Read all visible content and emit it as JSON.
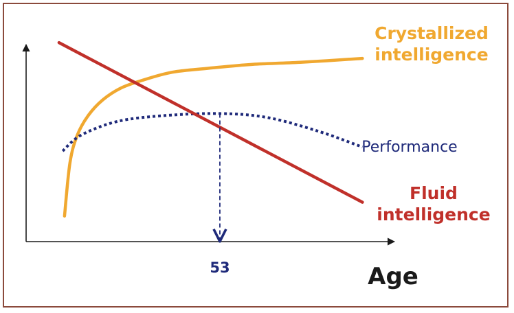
{
  "chart_data": {
    "type": "line",
    "title": "",
    "xlabel": "Age",
    "ylabel": "",
    "xlim": [
      0,
      100
    ],
    "ylim": [
      0,
      100
    ],
    "grid": false,
    "colors": {
      "crystallized": "#f0a830",
      "fluid": "#c0302a",
      "performance": "#1f2a7a",
      "axis": "#1a1a1a",
      "peak_marker": "#1f2a7a",
      "frame": "#8b4a3c"
    },
    "series": [
      {
        "name": "Crystallized intelligence",
        "label_lines": [
          "Crystallized",
          "intelligence"
        ],
        "style": "solid",
        "x": [
          10.5,
          12,
          14,
          17,
          21,
          26,
          32,
          40,
          50,
          62,
          75,
          92
        ],
        "y": [
          13,
          40,
          54,
          64,
          72,
          78,
          82,
          86,
          88,
          90,
          91,
          93
        ]
      },
      {
        "name": "Fluid intelligence",
        "label_lines": [
          "Fluid",
          "intelligence"
        ],
        "style": "solid",
        "x": [
          9,
          92
        ],
        "y": [
          101,
          20
        ]
      },
      {
        "name": "Performance",
        "label_lines": [
          "Performance"
        ],
        "style": "dotted",
        "x": [
          10,
          15,
          25,
          38,
          53,
          66,
          80,
          92
        ],
        "y": [
          46,
          54,
          61,
          64,
          65,
          63,
          56,
          48
        ]
      }
    ],
    "annotations": [
      {
        "type": "vertical_dashed_arrow",
        "x": 53,
        "from_y": 65,
        "to_y": 0,
        "label": "53"
      }
    ]
  }
}
